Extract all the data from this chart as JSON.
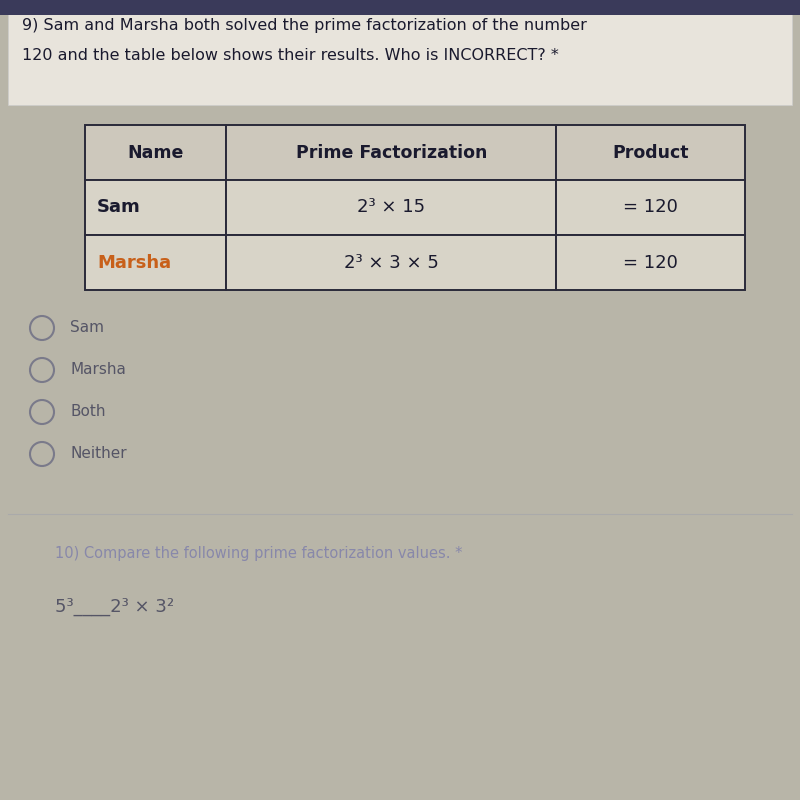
{
  "bg_color": "#b8b5a8",
  "paper_color": "#d4cfc4",
  "question_text_line1": "9) Sam and Marsha both solved the prime factorization of the number",
  "question_text_line2": "120 and the table below shows their results. Who is INCORRECT? *",
  "table_headers": [
    "Name",
    "Prime Factorization",
    "Product"
  ],
  "row1": [
    "Sam",
    "2³ × 15",
    "= 120"
  ],
  "row2": [
    "Marsha",
    "2³ × 3 × 5",
    "= 120"
  ],
  "marsha_color": "#c8601a",
  "header_bg": "#d4cfc4",
  "cell_bg": "#d8d3c8",
  "text_color": "#1a1a2e",
  "table_border_color": "#2a2a3a",
  "option_circle_color": "#7a7a8a",
  "option_text_color": "#555566",
  "q10_text_color": "#8888aa",
  "q10_expr_color": "#555566",
  "options": [
    "Sam",
    "Marsha",
    "Both",
    "Neither"
  ],
  "q10_text": "10) Compare the following prime factorization values. *",
  "q10_expression": "5³____2³ × 3²"
}
